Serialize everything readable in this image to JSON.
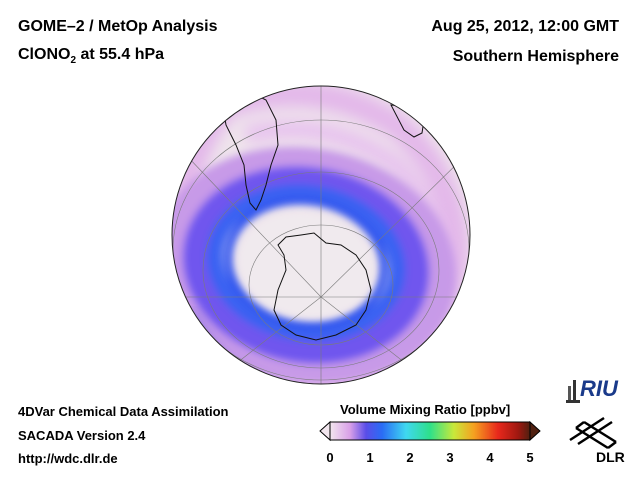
{
  "header": {
    "title": "GOME–2 / MetOp Analysis",
    "species_prefix": "ClONO",
    "species_subscript": "2",
    "species_suffix": " at 55.4 hPa",
    "date": "Aug 25, 2012, 12:00 GMT",
    "region": "Southern Hemisphere"
  },
  "footer": {
    "line1": "4DVar Chemical Data Assimilation",
    "line2": "SACADA Version 2.4",
    "line3": "http://wdc.dlr.de"
  },
  "colorbar": {
    "title": "Volume Mixing Ratio [ppbv]",
    "ticks": [
      "0",
      "1",
      "2",
      "3",
      "4",
      "5"
    ],
    "range": [
      0,
      5
    ],
    "colors": [
      "#f2e6ee",
      "#d9a0e8",
      "#5a4de8",
      "#2a6cf5",
      "#3fd8f0",
      "#2ee08a",
      "#c9e83a",
      "#f5a020",
      "#e8281c",
      "#a01810",
      "#502010"
    ]
  },
  "logos": {
    "riu": "RIU",
    "dlr": "DLR"
  },
  "map": {
    "projection": "orthographic-south-polar",
    "colors": {
      "background": "#efe4ec",
      "low": "#dcaee6",
      "mid": "#7a5cf0",
      "high": "#3a64f2",
      "polar": "#f1ecef"
    }
  }
}
